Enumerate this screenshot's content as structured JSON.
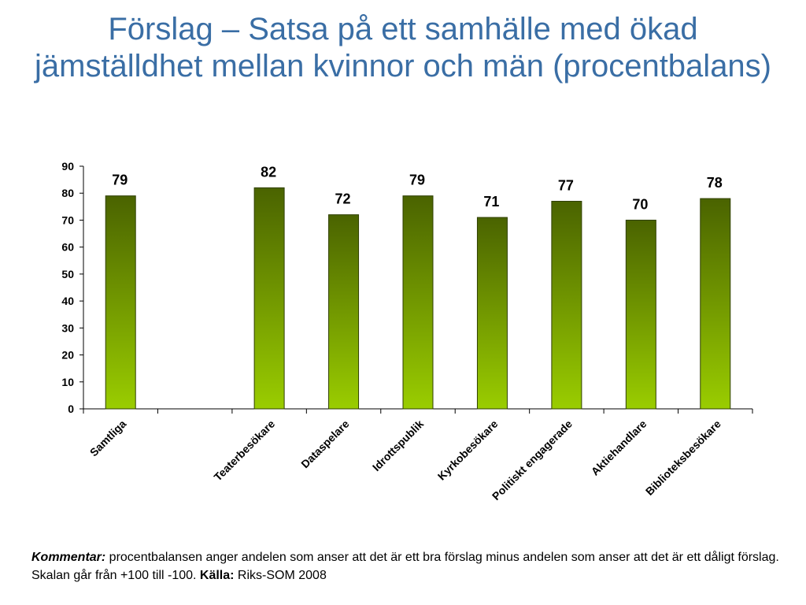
{
  "title": "Förslag – Satsa på ett samhälle med ökad jämställdhet mellan kvinnor och män (procentbalans)",
  "colors": {
    "title": "#3a6ea5",
    "bar_top": "#4a6300",
    "bar_bottom": "#9acd00",
    "axis": "#000000"
  },
  "chart_data": {
    "type": "bar",
    "categories": [
      "Samtliga",
      "",
      "Teaterbesökare",
      "Dataspelare",
      "Idrottspublik",
      "Kyrkobesökare",
      "Politiskt engagerade",
      "Aktiehandlare",
      "Biblioteksbesökare"
    ],
    "values": [
      79,
      null,
      82,
      72,
      79,
      71,
      77,
      70,
      78
    ],
    "data_labels": [
      "79",
      "",
      "82",
      "72",
      "79",
      "71",
      "77",
      "70",
      "78"
    ],
    "ylim": [
      0,
      90
    ],
    "yticks": [
      0,
      10,
      20,
      30,
      40,
      50,
      60,
      70,
      80,
      90
    ],
    "grid": false,
    "legend": "none",
    "xlabel": "",
    "ylabel": ""
  },
  "footnote": {
    "kommentar_label": "Kommentar:",
    "kommentar_text": " procentbalansen anger andelen som anser att det är ett bra förslag minus andelen som anser att det är ett dåligt förslag. Skalan går från +100 till -100. ",
    "kalla_label": "Källa:",
    "kalla_text": " Riks-SOM 2008"
  }
}
